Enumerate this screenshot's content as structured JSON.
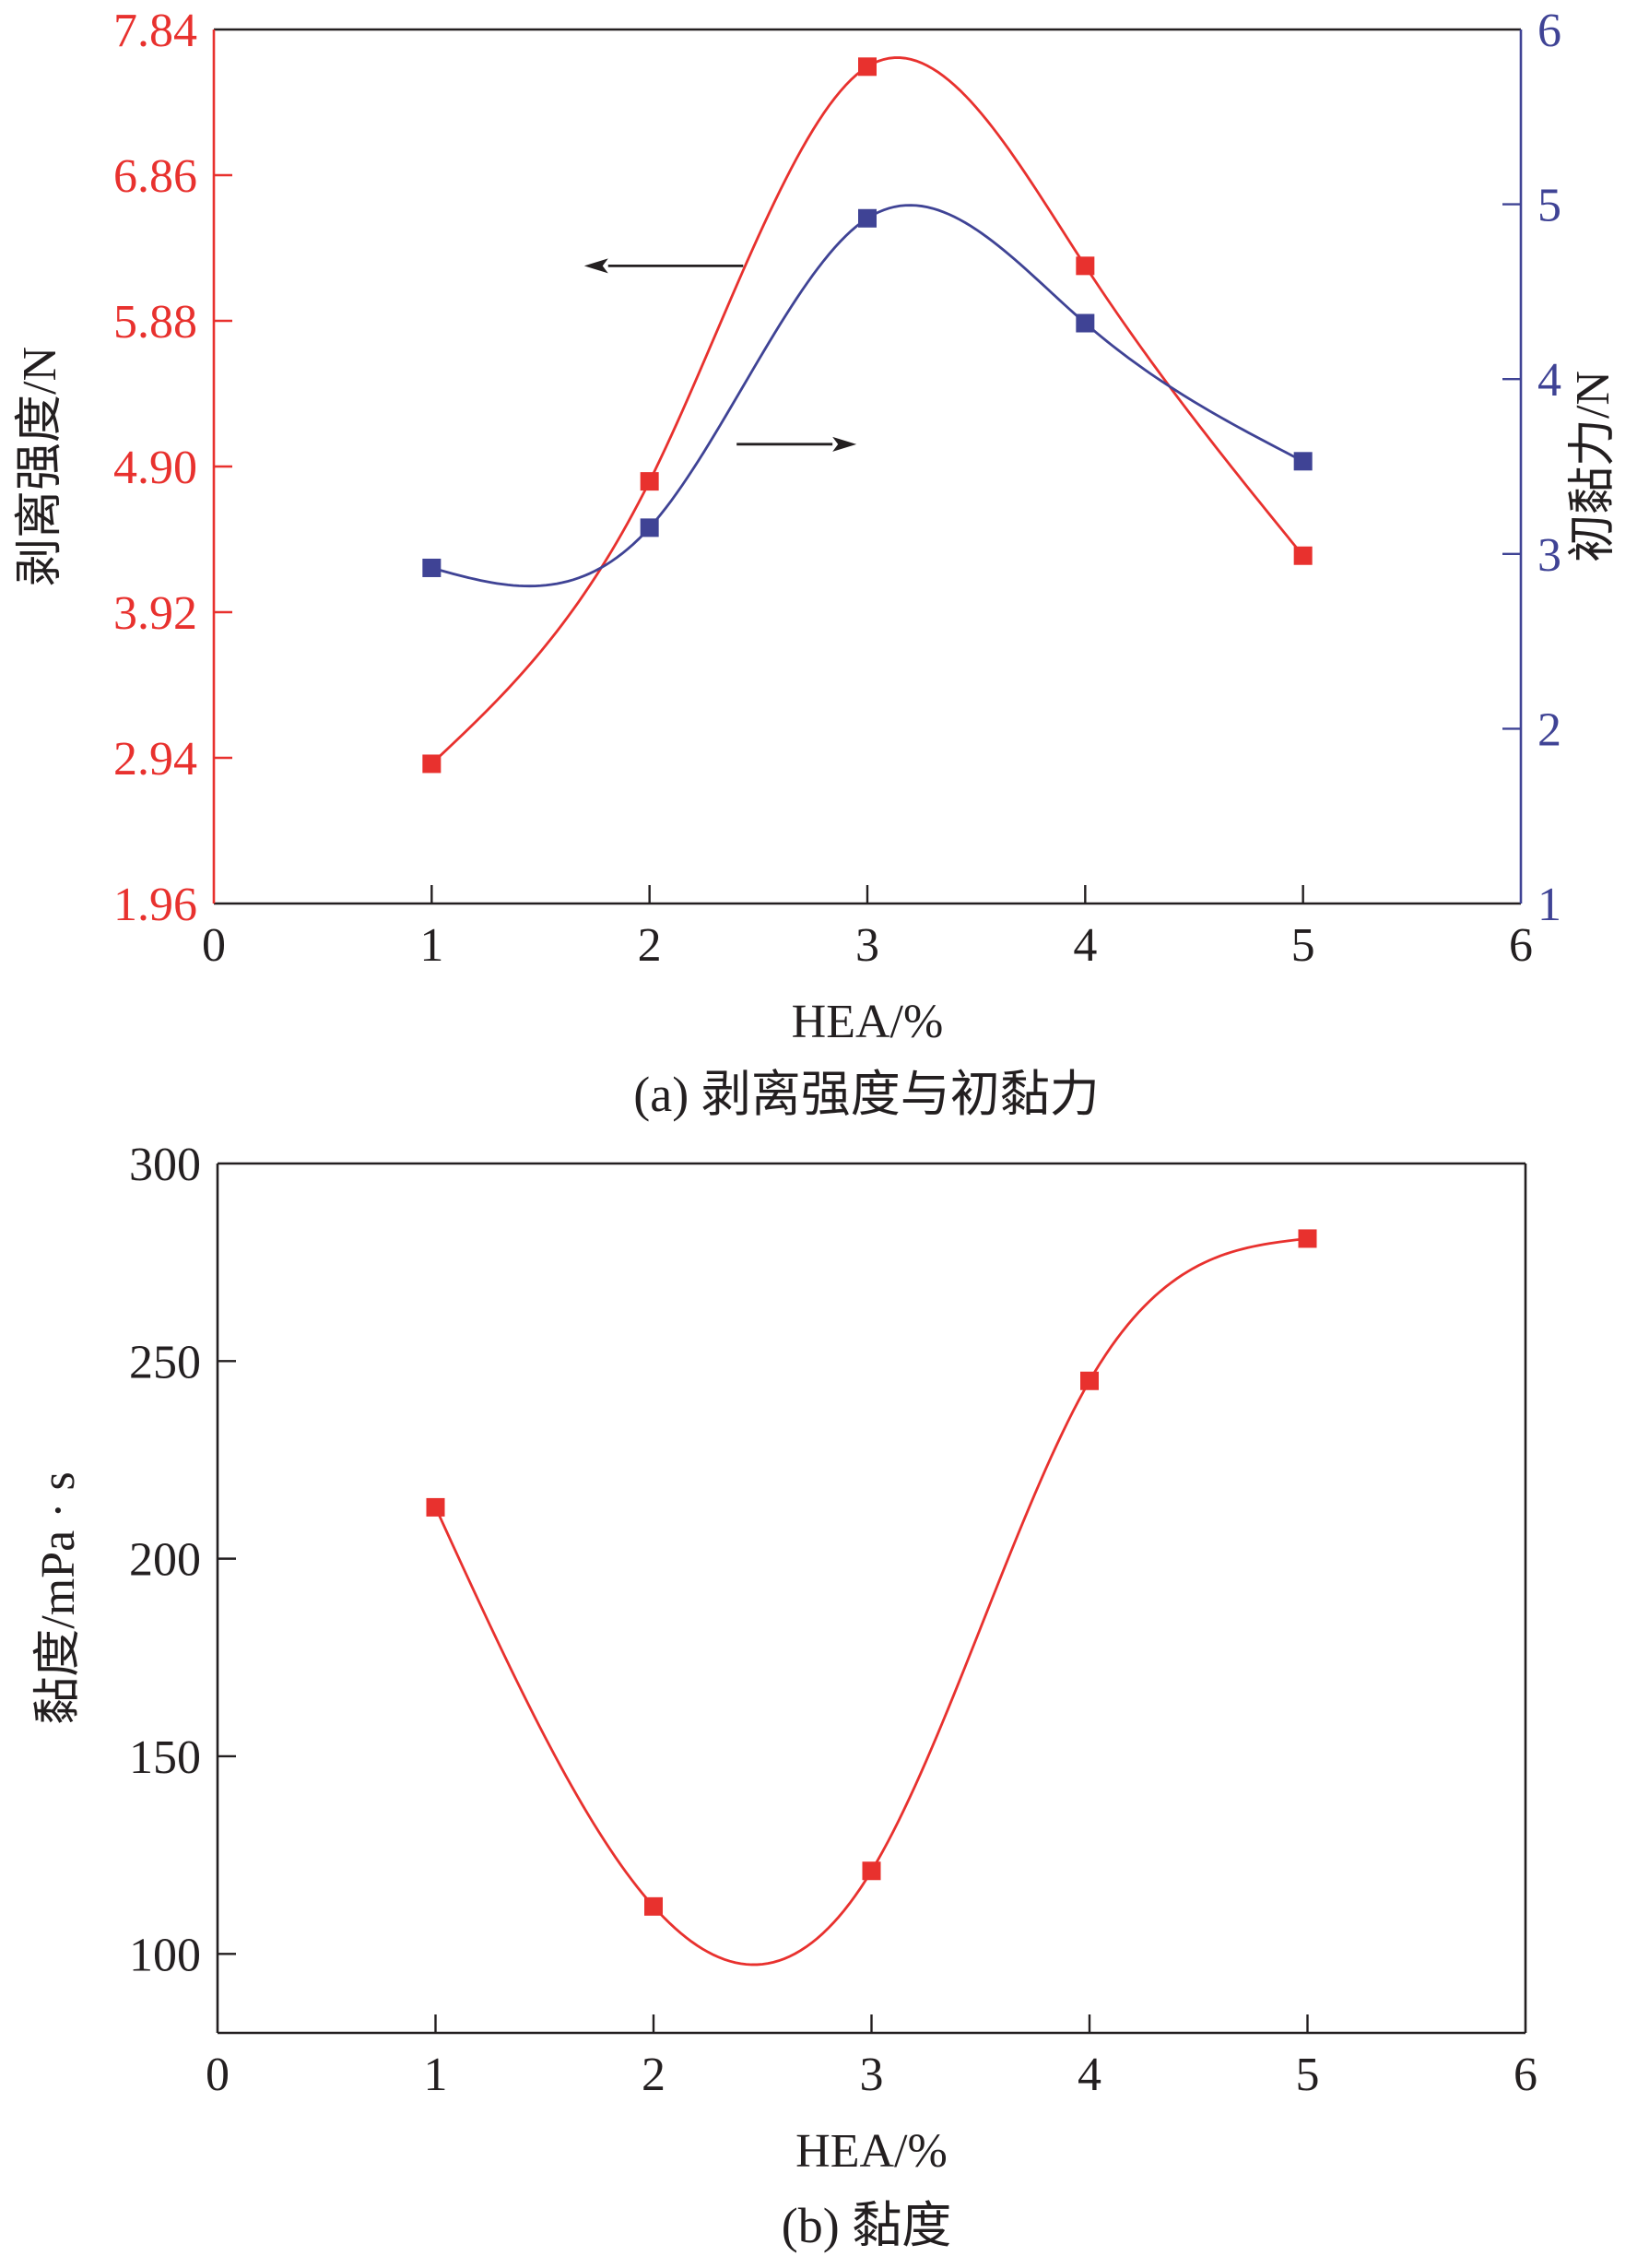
{
  "colors": {
    "red": "#e8312e",
    "blue": "#3f4395",
    "axis": "#231f20",
    "arrow": "#231f20"
  },
  "chart_data": [
    {
      "type": "line",
      "panel": "a",
      "caption": "(a) 剥离强度与初黏力",
      "xlabel": "HEA/%",
      "ylabel_left": "剥离强度/N",
      "ylabel_right": "初黏力/N",
      "xlim": [
        0,
        6
      ],
      "xticks": [
        "0",
        "1",
        "2",
        "3",
        "4",
        "5",
        "6"
      ],
      "ylim_left": [
        1.96,
        7.84
      ],
      "yticks_left": [
        "1.96",
        "2.94",
        "3.92",
        "4.90",
        "5.88",
        "6.86",
        "7.84"
      ],
      "ylim_right": [
        1,
        6
      ],
      "yticks_right": [
        "1",
        "2",
        "3",
        "4",
        "5",
        "6"
      ],
      "grid": false,
      "annotations": [
        {
          "type": "arrow",
          "direction": "left",
          "points_to": "left-axis",
          "series": "剥离强度"
        },
        {
          "type": "arrow",
          "direction": "right",
          "points_to": "right-axis",
          "series": "初黏力"
        }
      ],
      "series": [
        {
          "name": "剥离强度",
          "axis": "left",
          "color": "#e8312e",
          "x": [
            1,
            2,
            3,
            4,
            5
          ],
          "y": [
            2.9,
            4.8,
            7.59,
            6.25,
            4.3
          ]
        },
        {
          "name": "初黏力",
          "axis": "right",
          "color": "#3f4395",
          "x": [
            1,
            2,
            3,
            4,
            5
          ],
          "y": [
            2.92,
            3.15,
            4.92,
            4.32,
            3.53
          ]
        }
      ]
    },
    {
      "type": "line",
      "panel": "b",
      "caption": "(b) 黏度",
      "xlabel": "HEA/%",
      "ylabel": "黏度/mPa · s",
      "xlim": [
        0,
        6
      ],
      "xticks": [
        "0",
        "1",
        "2",
        "3",
        "4",
        "5",
        "6"
      ],
      "ylim": [
        80,
        300
      ],
      "yticks": [
        "100",
        "150",
        "200",
        "250",
        "300"
      ],
      "grid": false,
      "series": [
        {
          "name": "黏度",
          "axis": "left",
          "color": "#e8312e",
          "x": [
            1,
            2,
            3,
            4,
            5
          ],
          "y": [
            213,
            112,
            121,
            245,
            281
          ]
        }
      ]
    }
  ]
}
